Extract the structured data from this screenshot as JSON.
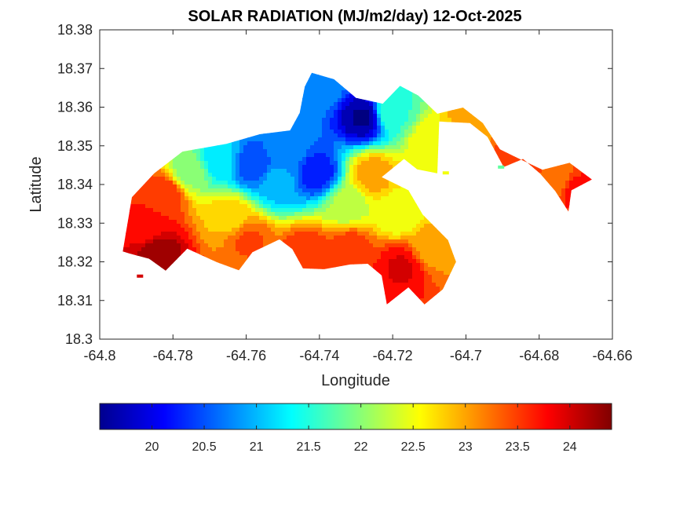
{
  "chart_data": {
    "type": "heatmap",
    "title": "SOLAR RADIATION (MJ/m2/day) 12-Oct-2025",
    "xlabel": "Longitude",
    "ylabel": "Latitude",
    "xlim": [
      -64.8,
      -64.66
    ],
    "ylim": [
      18.3,
      18.38
    ],
    "x_ticks": [
      -64.8,
      -64.78,
      -64.76,
      -64.74,
      -64.72,
      -64.7,
      -64.68,
      -64.66
    ],
    "x_tick_labels": [
      "-64.8",
      "-64.78",
      "-64.76",
      "-64.74",
      "-64.72",
      "-64.7",
      "-64.68",
      "-64.66"
    ],
    "y_ticks": [
      18.3,
      18.31,
      18.32,
      18.33,
      18.34,
      18.35,
      18.36,
      18.37,
      18.38
    ],
    "y_tick_labels": [
      "18.3",
      "18.31",
      "18.32",
      "18.33",
      "18.34",
      "18.35",
      "18.36",
      "18.37",
      "18.38"
    ],
    "colormap": "jet",
    "clim": [
      19.5,
      24.4
    ],
    "colorbar_ticks": [
      20,
      20.5,
      21,
      21.5,
      22,
      22.5,
      23,
      23.5,
      24
    ],
    "colorbar_tick_labels": [
      "20",
      "20.5",
      "21",
      "21.5",
      "22",
      "22.5",
      "23",
      "23.5",
      "24"
    ],
    "colorbar_location": "bottom",
    "grid": false,
    "field": {
      "island_outline": [
        [
          -64.7937,
          18.3227
        ],
        [
          -64.7912,
          18.3367
        ],
        [
          -64.7851,
          18.3429
        ],
        [
          -64.7774,
          18.3485
        ],
        [
          -64.7654,
          18.3505
        ],
        [
          -64.7563,
          18.353
        ],
        [
          -64.748,
          18.354
        ],
        [
          -64.7454,
          18.3585
        ],
        [
          -64.744,
          18.3653
        ],
        [
          -64.7421,
          18.3689
        ],
        [
          -64.736,
          18.3672
        ],
        [
          -64.73,
          18.3624
        ],
        [
          -64.7227,
          18.3609
        ],
        [
          -64.718,
          18.3655
        ],
        [
          -64.713,
          18.363
        ],
        [
          -64.7078,
          18.3583
        ],
        [
          -64.7008,
          18.3599
        ],
        [
          -64.6954,
          18.3559
        ],
        [
          -64.6907,
          18.3491
        ],
        [
          -64.686,
          18.3469
        ],
        [
          -64.6791,
          18.3438
        ],
        [
          -64.6717,
          18.3456
        ],
        [
          -64.6656,
          18.3413
        ],
        [
          -64.6712,
          18.3385
        ],
        [
          -64.672,
          18.333
        ],
        [
          -64.6756,
          18.3383
        ],
        [
          -64.6797,
          18.3428
        ],
        [
          -64.6844,
          18.3466
        ],
        [
          -64.6897,
          18.3445
        ],
        [
          -64.6941,
          18.3523
        ],
        [
          -64.6989,
          18.3559
        ],
        [
          -64.7073,
          18.3563
        ],
        [
          -64.7078,
          18.3429
        ],
        [
          -64.7133,
          18.3439
        ],
        [
          -64.7169,
          18.3466
        ],
        [
          -64.723,
          18.3419
        ],
        [
          -64.7157,
          18.3385
        ],
        [
          -64.7118,
          18.3322
        ],
        [
          -64.7049,
          18.3256
        ],
        [
          -64.7027,
          18.32
        ],
        [
          -64.7063,
          18.3129
        ],
        [
          -64.7113,
          18.309
        ],
        [
          -64.7157,
          18.3134
        ],
        [
          -64.7216,
          18.309
        ],
        [
          -64.723,
          18.3165
        ],
        [
          -64.7268,
          18.3195
        ],
        [
          -64.7316,
          18.3193
        ],
        [
          -64.7387,
          18.3181
        ],
        [
          -64.7445,
          18.3183
        ],
        [
          -64.7474,
          18.3233
        ],
        [
          -64.7509,
          18.3258
        ],
        [
          -64.7583,
          18.3225
        ],
        [
          -64.762,
          18.3178
        ],
        [
          -64.768,
          18.3199
        ],
        [
          -64.7761,
          18.3234
        ],
        [
          -64.782,
          18.3177
        ],
        [
          -64.7865,
          18.3208
        ],
        [
          -64.792,
          18.3222
        ]
      ],
      "hotspots": [
        {
          "lon": -64.7285,
          "lat": 18.3578,
          "value": 19.6
        },
        {
          "lon": -64.7415,
          "lat": 18.3435,
          "value": 20.2
        },
        {
          "lon": -64.7585,
          "lat": 18.3455,
          "value": 20.4
        },
        {
          "lon": -64.752,
          "lat": 18.341,
          "value": 21.0
        },
        {
          "lon": -64.7495,
          "lat": 18.3485,
          "value": 20.8
        },
        {
          "lon": -64.74,
          "lat": 18.366,
          "value": 20.8
        },
        {
          "lon": -64.768,
          "lat": 18.347,
          "value": 21.2
        },
        {
          "lon": -64.721,
          "lat": 18.359,
          "value": 21.6
        },
        {
          "lon": -64.776,
          "lat": 18.344,
          "value": 22.0
        },
        {
          "lon": -64.765,
          "lat": 18.332,
          "value": 22.8
        },
        {
          "lon": -64.733,
          "lat": 18.335,
          "value": 22.2
        },
        {
          "lon": -64.719,
          "lat": 18.333,
          "value": 22.4
        },
        {
          "lon": -64.726,
          "lat": 18.343,
          "value": 23.0
        },
        {
          "lon": -64.71,
          "lat": 18.351,
          "value": 22.6
        },
        {
          "lon": -64.699,
          "lat": 18.3595,
          "value": 23.0
        },
        {
          "lon": -64.71,
          "lat": 18.324,
          "value": 23.0
        },
        {
          "lon": -64.783,
          "lat": 18.338,
          "value": 23.6
        },
        {
          "lon": -64.788,
          "lat": 18.329,
          "value": 23.7
        },
        {
          "lon": -64.785,
          "lat": 18.323,
          "value": 24.3
        },
        {
          "lon": -64.732,
          "lat": 18.324,
          "value": 23.5
        },
        {
          "lon": -64.718,
          "lat": 18.319,
          "value": 23.9
        },
        {
          "lon": -64.744,
          "lat": 18.323,
          "value": 23.6
        },
        {
          "lon": -64.76,
          "lat": 18.326,
          "value": 23.4
        },
        {
          "lon": -64.685,
          "lat": 18.346,
          "value": 23.6
        },
        {
          "lon": -64.676,
          "lat": 18.342,
          "value": 23.2
        },
        {
          "lon": -64.67,
          "lat": 18.339,
          "value": 23.7
        }
      ],
      "detached_cells": [
        {
          "lon": -64.789,
          "lat": 18.3163,
          "value": 24.0
        },
        {
          "lon": -64.6904,
          "lat": 18.3445,
          "value": 21.8
        },
        {
          "lon": -64.7055,
          "lat": 18.343,
          "value": 22.5
        }
      ]
    }
  }
}
